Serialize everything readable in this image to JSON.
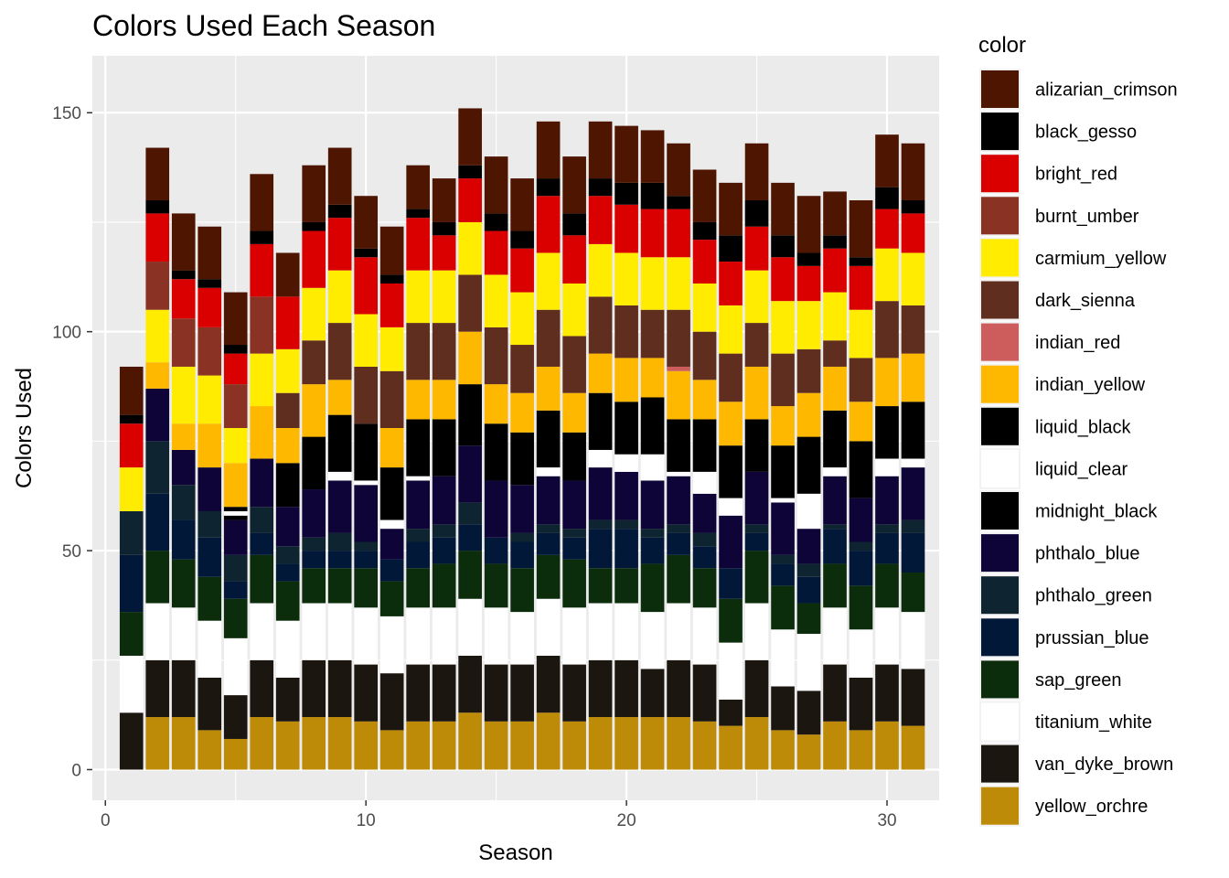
{
  "chart_data": {
    "type": "bar",
    "stacked": true,
    "title": "Colors Used Each Season",
    "xlabel": "Season",
    "ylabel": "Colors Used",
    "xlim": [
      -0.5,
      32
    ],
    "ylim": [
      -7,
      163
    ],
    "xticks": [
      0,
      10,
      20,
      30
    ],
    "yticks": [
      0,
      50,
      100,
      150
    ],
    "grid": true,
    "legend_title": "color",
    "legend_position": "right",
    "x": [
      1,
      2,
      3,
      4,
      5,
      6,
      7,
      8,
      9,
      10,
      11,
      12,
      13,
      14,
      15,
      16,
      17,
      18,
      19,
      20,
      21,
      22,
      23,
      24,
      25,
      26,
      27,
      28,
      29,
      30,
      31
    ],
    "series": [
      {
        "name": "yellow_orchre",
        "color": "#BD8B08",
        "values": [
          0,
          12,
          12,
          9,
          7,
          12,
          11,
          12,
          12,
          11,
          9,
          11,
          11,
          13,
          11,
          11,
          13,
          11,
          12,
          12,
          12,
          12,
          11,
          10,
          12,
          9,
          8,
          11,
          9,
          11,
          10
        ]
      },
      {
        "name": "van_dyke_brown",
        "color": "#1C1611",
        "values": [
          13,
          13,
          13,
          12,
          10,
          13,
          10,
          13,
          13,
          13,
          13,
          13,
          13,
          13,
          13,
          13,
          13,
          13,
          13,
          13,
          11,
          13,
          13,
          6,
          13,
          10,
          10,
          13,
          12,
          13,
          13
        ]
      },
      {
        "name": "titanium_white",
        "color": "#FFFFFF",
        "values": [
          13,
          13,
          12,
          13,
          13,
          13,
          13,
          13,
          13,
          13,
          13,
          13,
          13,
          13,
          13,
          12,
          13,
          13,
          13,
          13,
          13,
          13,
          13,
          13,
          13,
          13,
          13,
          13,
          11,
          13,
          13
        ]
      },
      {
        "name": "sap_green",
        "color": "#0C2D0C",
        "values": [
          10,
          12,
          11,
          10,
          9,
          11,
          9,
          8,
          8,
          9,
          8,
          9,
          10,
          11,
          10,
          10,
          10,
          11,
          8,
          8,
          11,
          11,
          9,
          10,
          12,
          10,
          7,
          10,
          10,
          10,
          9
        ]
      },
      {
        "name": "prussian_blue",
        "color": "#021839",
        "values": [
          13,
          13,
          9,
          9,
          4,
          5,
          4,
          4,
          4,
          4,
          5,
          6,
          6,
          6,
          6,
          6,
          5,
          5,
          9,
          9,
          6,
          5,
          5,
          7,
          4,
          5,
          6,
          8,
          8,
          7,
          9
        ]
      },
      {
        "name": "phthalo_green",
        "color": "#0E2430",
        "values": [
          10,
          12,
          8,
          6,
          6,
          6,
          4,
          3,
          4,
          2,
          0,
          3,
          3,
          5,
          0,
          2,
          2,
          2,
          2,
          2,
          2,
          2,
          3,
          0,
          2,
          2,
          3,
          1,
          2,
          2,
          3
        ]
      },
      {
        "name": "phthalo_blue",
        "color": "#0E0438",
        "values": [
          0,
          12,
          8,
          10,
          8,
          11,
          9,
          11,
          12,
          13,
          7,
          11,
          11,
          13,
          13,
          11,
          11,
          11,
          12,
          11,
          11,
          11,
          9,
          12,
          12,
          12,
          8,
          11,
          10,
          11,
          12
        ]
      },
      {
        "name": "midnight_black",
        "color": "#000000",
        "values": [
          0,
          0,
          0,
          0,
          1,
          0,
          0,
          0,
          0,
          0,
          0,
          0,
          0,
          0,
          0,
          0,
          0,
          0,
          0,
          0,
          0,
          0,
          0,
          0,
          0,
          0,
          0,
          0,
          0,
          0,
          0
        ]
      },
      {
        "name": "liquid_clear",
        "color": "#FFFFFF",
        "values": [
          0,
          0,
          0,
          0,
          1,
          0,
          0,
          0,
          2,
          1,
          2,
          1,
          0,
          0,
          0,
          0,
          2,
          0,
          4,
          4,
          6,
          1,
          5,
          4,
          0,
          1,
          8,
          2,
          0,
          4,
          2
        ]
      },
      {
        "name": "liquid_black",
        "color": "#000000",
        "values": [
          0,
          0,
          0,
          0,
          1,
          0,
          10,
          12,
          13,
          13,
          12,
          13,
          13,
          14,
          13,
          12,
          13,
          11,
          13,
          12,
          13,
          12,
          12,
          12,
          12,
          12,
          13,
          13,
          13,
          12,
          13
        ]
      },
      {
        "name": "indian_yellow",
        "color": "#FFB800",
        "values": [
          0,
          6,
          6,
          10,
          10,
          12,
          8,
          12,
          8,
          0,
          9,
          9,
          9,
          12,
          9,
          9,
          10,
          9,
          9,
          10,
          9,
          11,
          9,
          10,
          12,
          9,
          10,
          10,
          9,
          11,
          11
        ]
      },
      {
        "name": "indian_red",
        "color": "#CD5C5C",
        "values": [
          0,
          0,
          0,
          0,
          0,
          0,
          0,
          0,
          0,
          0,
          0,
          0,
          0,
          0,
          0,
          0,
          0,
          0,
          0,
          0,
          0,
          1,
          0,
          0,
          0,
          0,
          0,
          0,
          0,
          0,
          0
        ]
      },
      {
        "name": "dark_sienna",
        "color": "#5F2E1F",
        "values": [
          0,
          0,
          0,
          0,
          0,
          0,
          8,
          10,
          13,
          13,
          13,
          13,
          13,
          13,
          13,
          11,
          13,
          13,
          13,
          12,
          11,
          13,
          11,
          11,
          10,
          12,
          10,
          6,
          10,
          13,
          11
        ]
      },
      {
        "name": "carmium_yellow",
        "color": "#FFEC00",
        "values": [
          10,
          12,
          13,
          11,
          8,
          12,
          10,
          12,
          12,
          12,
          10,
          12,
          12,
          12,
          12,
          12,
          13,
          12,
          12,
          12,
          12,
          12,
          11,
          11,
          12,
          12,
          11,
          11,
          11,
          12,
          12
        ]
      },
      {
        "name": "burnt_umber",
        "color": "#8A3324",
        "values": [
          0,
          11,
          11,
          11,
          10,
          13,
          0,
          0,
          0,
          0,
          0,
          0,
          0,
          0,
          0,
          0,
          0,
          0,
          0,
          0,
          0,
          0,
          0,
          0,
          0,
          0,
          0,
          0,
          0,
          0,
          0
        ]
      },
      {
        "name": "bright_red",
        "color": "#DB0000",
        "values": [
          10,
          11,
          9,
          9,
          7,
          12,
          12,
          13,
          12,
          13,
          10,
          12,
          8,
          10,
          10,
          10,
          13,
          11,
          11,
          11,
          11,
          11,
          10,
          10,
          10,
          10,
          8,
          10,
          10,
          9,
          9
        ]
      },
      {
        "name": "black_gesso",
        "color": "#000000",
        "values": [
          2,
          3,
          2,
          2,
          2,
          3,
          0,
          2,
          3,
          2,
          2,
          2,
          3,
          3,
          4,
          4,
          4,
          5,
          4,
          5,
          6,
          3,
          4,
          6,
          6,
          5,
          3,
          3,
          2,
          5,
          3
        ]
      },
      {
        "name": "alizarian_crimson",
        "color": "#4E1500",
        "values": [
          11,
          12,
          13,
          12,
          12,
          13,
          10,
          13,
          13,
          12,
          11,
          10,
          10,
          13,
          13,
          12,
          13,
          13,
          13,
          13,
          12,
          12,
          12,
          12,
          13,
          12,
          13,
          10,
          13,
          12,
          13
        ]
      }
    ]
  }
}
